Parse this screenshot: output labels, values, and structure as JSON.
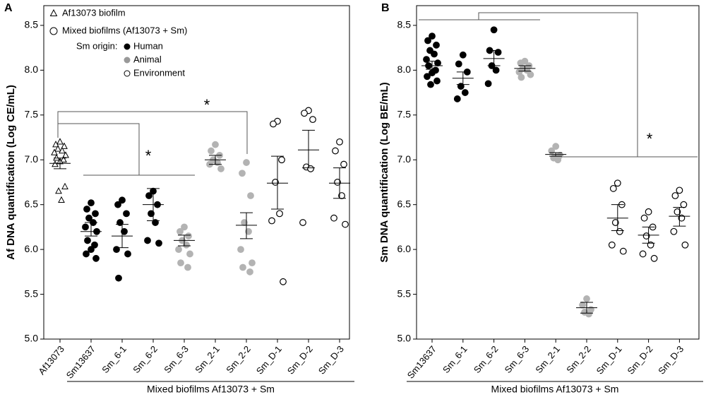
{
  "chart_data": [
    {
      "type": "dot",
      "panel": "A",
      "ylabel": "Af DNA quantification (Log CE/mL)",
      "group_label": "Mixed biofilms Af13073 + Sm",
      "ylim": [
        5,
        8.72
      ],
      "yticks": [
        {
          "value": 5,
          "label": "5.0"
        },
        5.5,
        {
          "value": 6,
          "label": "6.0"
        },
        6.5,
        {
          "value": 7,
          "label": "7.0"
        },
        7.5,
        {
          "value": 8,
          "label": "8.0"
        },
        8.5
      ],
      "categories": [
        "Af13073",
        "Sm13637",
        "Sm_6-1",
        "Sm_6-2",
        "Sm_6-3",
        "Sm_2-1",
        "Sm_2-2",
        "Sm_D-1",
        "Sm_D-2",
        "Sm_D-3"
      ],
      "groups": [
        {
          "marker": "triangle",
          "color": "#ffffff",
          "points": [
            7.2,
            7.17,
            7.15,
            7.12,
            7.1,
            7.08,
            7.05,
            7.02,
            7.0,
            6.98,
            6.95,
            6.7,
            6.65,
            6.55
          ],
          "mean": 6.96,
          "lower": 6.9,
          "upper": 7.02
        },
        {
          "marker": "circle",
          "color": "#000000",
          "points": [
            6.52,
            6.45,
            6.4,
            6.35,
            6.3,
            6.25,
            6.2,
            6.1,
            6.05,
            6.0,
            5.95,
            5.9
          ],
          "mean": 6.2,
          "lower": 6.15,
          "upper": 6.3
        },
        {
          "marker": "circle",
          "color": "#000000",
          "points": [
            6.55,
            6.5,
            6.4,
            6.3,
            6.2,
            6.0,
            5.95,
            5.68
          ],
          "mean": 6.15,
          "lower": 6.02,
          "upper": 6.28
        },
        {
          "marker": "circle",
          "color": "#000000",
          "points": [
            6.65,
            6.6,
            6.5,
            6.4,
            6.3,
            6.1,
            6.07
          ],
          "mean": 6.5,
          "lower": 6.32,
          "upper": 6.68
        },
        {
          "marker": "circle",
          "color": "#b3b3b3",
          "points": [
            6.25,
            6.2,
            6.15,
            6.1,
            6.05,
            6.0,
            5.95,
            5.85,
            5.8
          ],
          "mean": 6.1,
          "lower": 6.04,
          "upper": 6.16
        },
        {
          "marker": "circle",
          "color": "#b3b3b3",
          "points": [
            7.17,
            7.1,
            7.05,
            7.0,
            6.97,
            6.95,
            6.9
          ],
          "mean": 7.0,
          "lower": 6.95,
          "upper": 7.05
        },
        {
          "marker": "circle",
          "color": "#b3b3b3",
          "points": [
            6.97,
            6.85,
            6.6,
            6.3,
            6.2,
            6.0,
            5.85,
            5.8,
            5.75
          ],
          "mean": 6.27,
          "lower": 6.12,
          "upper": 6.41
        },
        {
          "marker": "circle",
          "color": "#ffffff",
          "points": [
            7.43,
            7.4,
            7.0,
            6.75,
            6.4,
            6.32,
            5.64
          ],
          "mean": 6.74,
          "lower": 6.45,
          "upper": 7.04
        },
        {
          "marker": "circle",
          "color": "#ffffff",
          "points": [
            7.55,
            7.52,
            7.45,
            6.92,
            6.9,
            6.3
          ],
          "mean": 7.11,
          "lower": 6.91,
          "upper": 7.33
        },
        {
          "marker": "circle",
          "color": "#ffffff",
          "points": [
            7.2,
            7.1,
            6.95,
            6.75,
            6.6,
            6.35,
            6.28
          ],
          "mean": 6.74,
          "lower": 6.57,
          "upper": 6.91
        }
      ],
      "legend": [
        {
          "label": "Af13073 biofilm",
          "marker": "triangle"
        },
        {
          "label": "Mixed biofilms (Af13073 + Sm)",
          "marker": "circle"
        }
      ],
      "origin_title": "Sm origin:",
      "origin_items": [
        {
          "label": "Human",
          "color": "#000000"
        },
        {
          "label": "Animal",
          "color": "#999999"
        },
        {
          "label": "Environment",
          "color": "#ffffff"
        }
      ],
      "annotations": [
        "*",
        "*"
      ]
    },
    {
      "type": "dot",
      "panel": "B",
      "ylabel": "Sm DNA quantification (Log BE/mL)",
      "group_label": "Mixed biofilms Af13073 + Sm",
      "ylim": [
        5,
        8.72
      ],
      "yticks": [
        {
          "value": 5,
          "label": "5.0"
        },
        5.5,
        {
          "value": 6,
          "label": "6.0"
        },
        6.5,
        {
          "value": 7,
          "label": "7.0"
        },
        7.5,
        {
          "value": 8,
          "label": "8.0"
        },
        8.5
      ],
      "categories": [
        "Sm13637",
        "Sm_6-1",
        "Sm_6-2",
        "Sm_6-3",
        "Sm_2-1",
        "Sm_2-2",
        "Sm_D-1",
        "Sm_D-2",
        "Sm_D-3"
      ],
      "groups": [
        {
          "marker": "circle",
          "color": "#000000",
          "points": [
            8.38,
            8.33,
            8.28,
            8.22,
            8.18,
            8.12,
            8.08,
            8.05,
            8.0,
            7.97,
            7.93,
            7.88,
            7.84
          ],
          "mean": 8.05,
          "lower": 8.01,
          "upper": 8.1
        },
        {
          "marker": "circle",
          "color": "#000000",
          "points": [
            8.17,
            8.07,
            7.98,
            7.82,
            7.75,
            7.68
          ],
          "mean": 7.91,
          "lower": 7.84,
          "upper": 7.98
        },
        {
          "marker": "circle",
          "color": "#000000",
          "points": [
            8.45,
            8.22,
            8.2,
            8.05,
            8.0,
            7.85
          ],
          "mean": 8.13,
          "lower": 8.05,
          "upper": 8.22
        },
        {
          "marker": "circle",
          "color": "#b3b3b3",
          "points": [
            8.1,
            8.08,
            8.05,
            8.02,
            8.0,
            7.98,
            7.95,
            7.92
          ],
          "mean": 8.02,
          "lower": 7.99,
          "upper": 8.05
        },
        {
          "marker": "circle",
          "color": "#b3b3b3",
          "points": [
            7.15,
            7.1,
            7.05,
            7.02,
            7.0
          ],
          "mean": 7.06,
          "lower": 7.04,
          "upper": 7.08
        },
        {
          "marker": "circle",
          "color": "#b3b3b3",
          "points": [
            5.45,
            5.38,
            5.33,
            5.3,
            5.28
          ],
          "mean": 5.35,
          "lower": 5.29,
          "upper": 5.41
        },
        {
          "marker": "circle",
          "color": "#ffffff",
          "points": [
            6.74,
            6.68,
            6.5,
            6.3,
            6.2,
            6.05,
            5.98
          ],
          "mean": 6.35,
          "lower": 6.21,
          "upper": 6.5
        },
        {
          "marker": "circle",
          "color": "#ffffff",
          "points": [
            6.42,
            6.35,
            6.25,
            6.15,
            6.05,
            5.95,
            5.9
          ],
          "mean": 6.16,
          "lower": 6.07,
          "upper": 6.25
        },
        {
          "marker": "circle",
          "color": "#ffffff",
          "points": [
            6.66,
            6.6,
            6.5,
            6.42,
            6.35,
            6.2,
            6.05
          ],
          "mean": 6.37,
          "lower": 6.26,
          "upper": 6.47
        }
      ],
      "annotations": [
        "*"
      ]
    }
  ]
}
